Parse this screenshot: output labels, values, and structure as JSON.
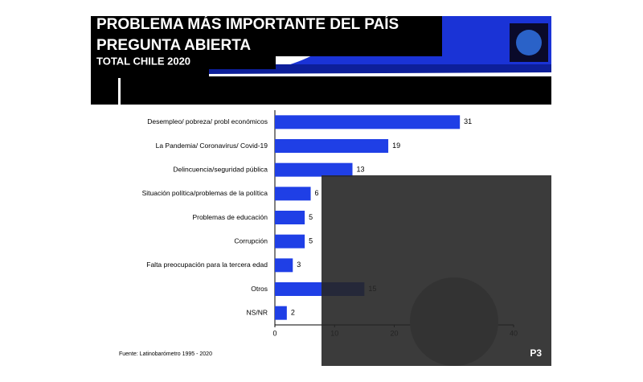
{
  "header": {
    "title": "PROBLEMA MÁS IMPORTANTE DEL PAÍS",
    "subtitle": "PREGUNTA ABIERTA",
    "scope": "TOTAL CHILE 2020"
  },
  "chart_data": {
    "type": "bar",
    "orientation": "horizontal",
    "categories": [
      "Desempleo/ pobreza/ probl económicos",
      "La Pandemia/ Coronavirus/ Covid-19",
      "Delincuencia/seguridad pública",
      "Situación política/problemas de la política",
      "Problemas de educación",
      "Corrupción",
      "Falta preocupación para la tercera edad",
      "Otros",
      "NS/NR"
    ],
    "values": [
      31,
      19,
      13,
      6,
      5,
      5,
      3,
      15,
      2
    ],
    "color": "#1f3fe6",
    "xlim": [
      0,
      40
    ],
    "xticks": [
      0,
      10,
      20,
      30,
      40
    ]
  },
  "footer": {
    "source": "Fuente: Latinobarómetro  1995 - 2020",
    "page": "P3"
  }
}
